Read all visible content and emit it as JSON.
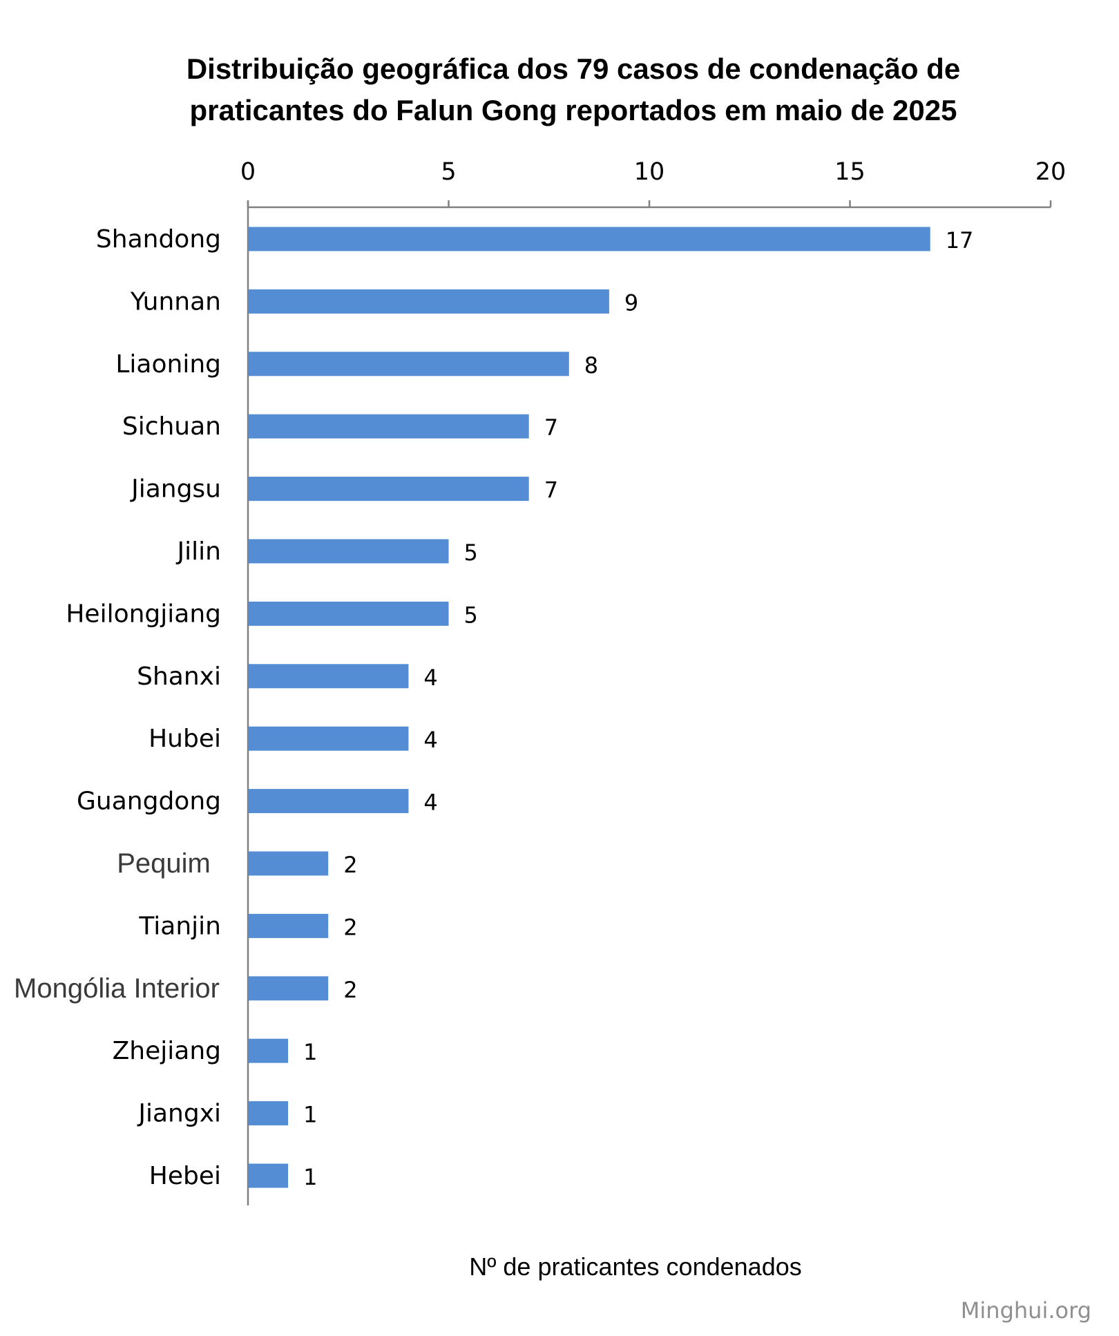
{
  "chart_data": {
    "type": "bar",
    "orientation": "horizontal",
    "title_lines": [
      "Distribuição geográfica dos 79 casos de condenação de",
      "praticantes do Falun Gong reportados em maio de 2025"
    ],
    "xlabel": "Nº de praticantes condenados",
    "ylabel": "",
    "xlim": [
      0,
      20
    ],
    "x_ticks": [
      0,
      5,
      10,
      15,
      20
    ],
    "axis_position": "top",
    "grid": false,
    "bar_color": "#548DD4",
    "categories": [
      "Shandong",
      "Yunnan",
      "Liaoning",
      "Sichuan",
      "Jiangsu",
      "Jilin",
      "Heilongjiang",
      "Shanxi",
      "Hubei",
      "Guangdong",
      "Pequim",
      "Tianjin",
      "Mongólia Interior",
      "Zhejiang",
      "Jiangxi",
      "Hebei"
    ],
    "values": [
      17,
      9,
      8,
      7,
      7,
      5,
      5,
      4,
      4,
      4,
      2,
      2,
      2,
      1,
      1,
      1
    ]
  },
  "source_credit": "Minghui.org"
}
